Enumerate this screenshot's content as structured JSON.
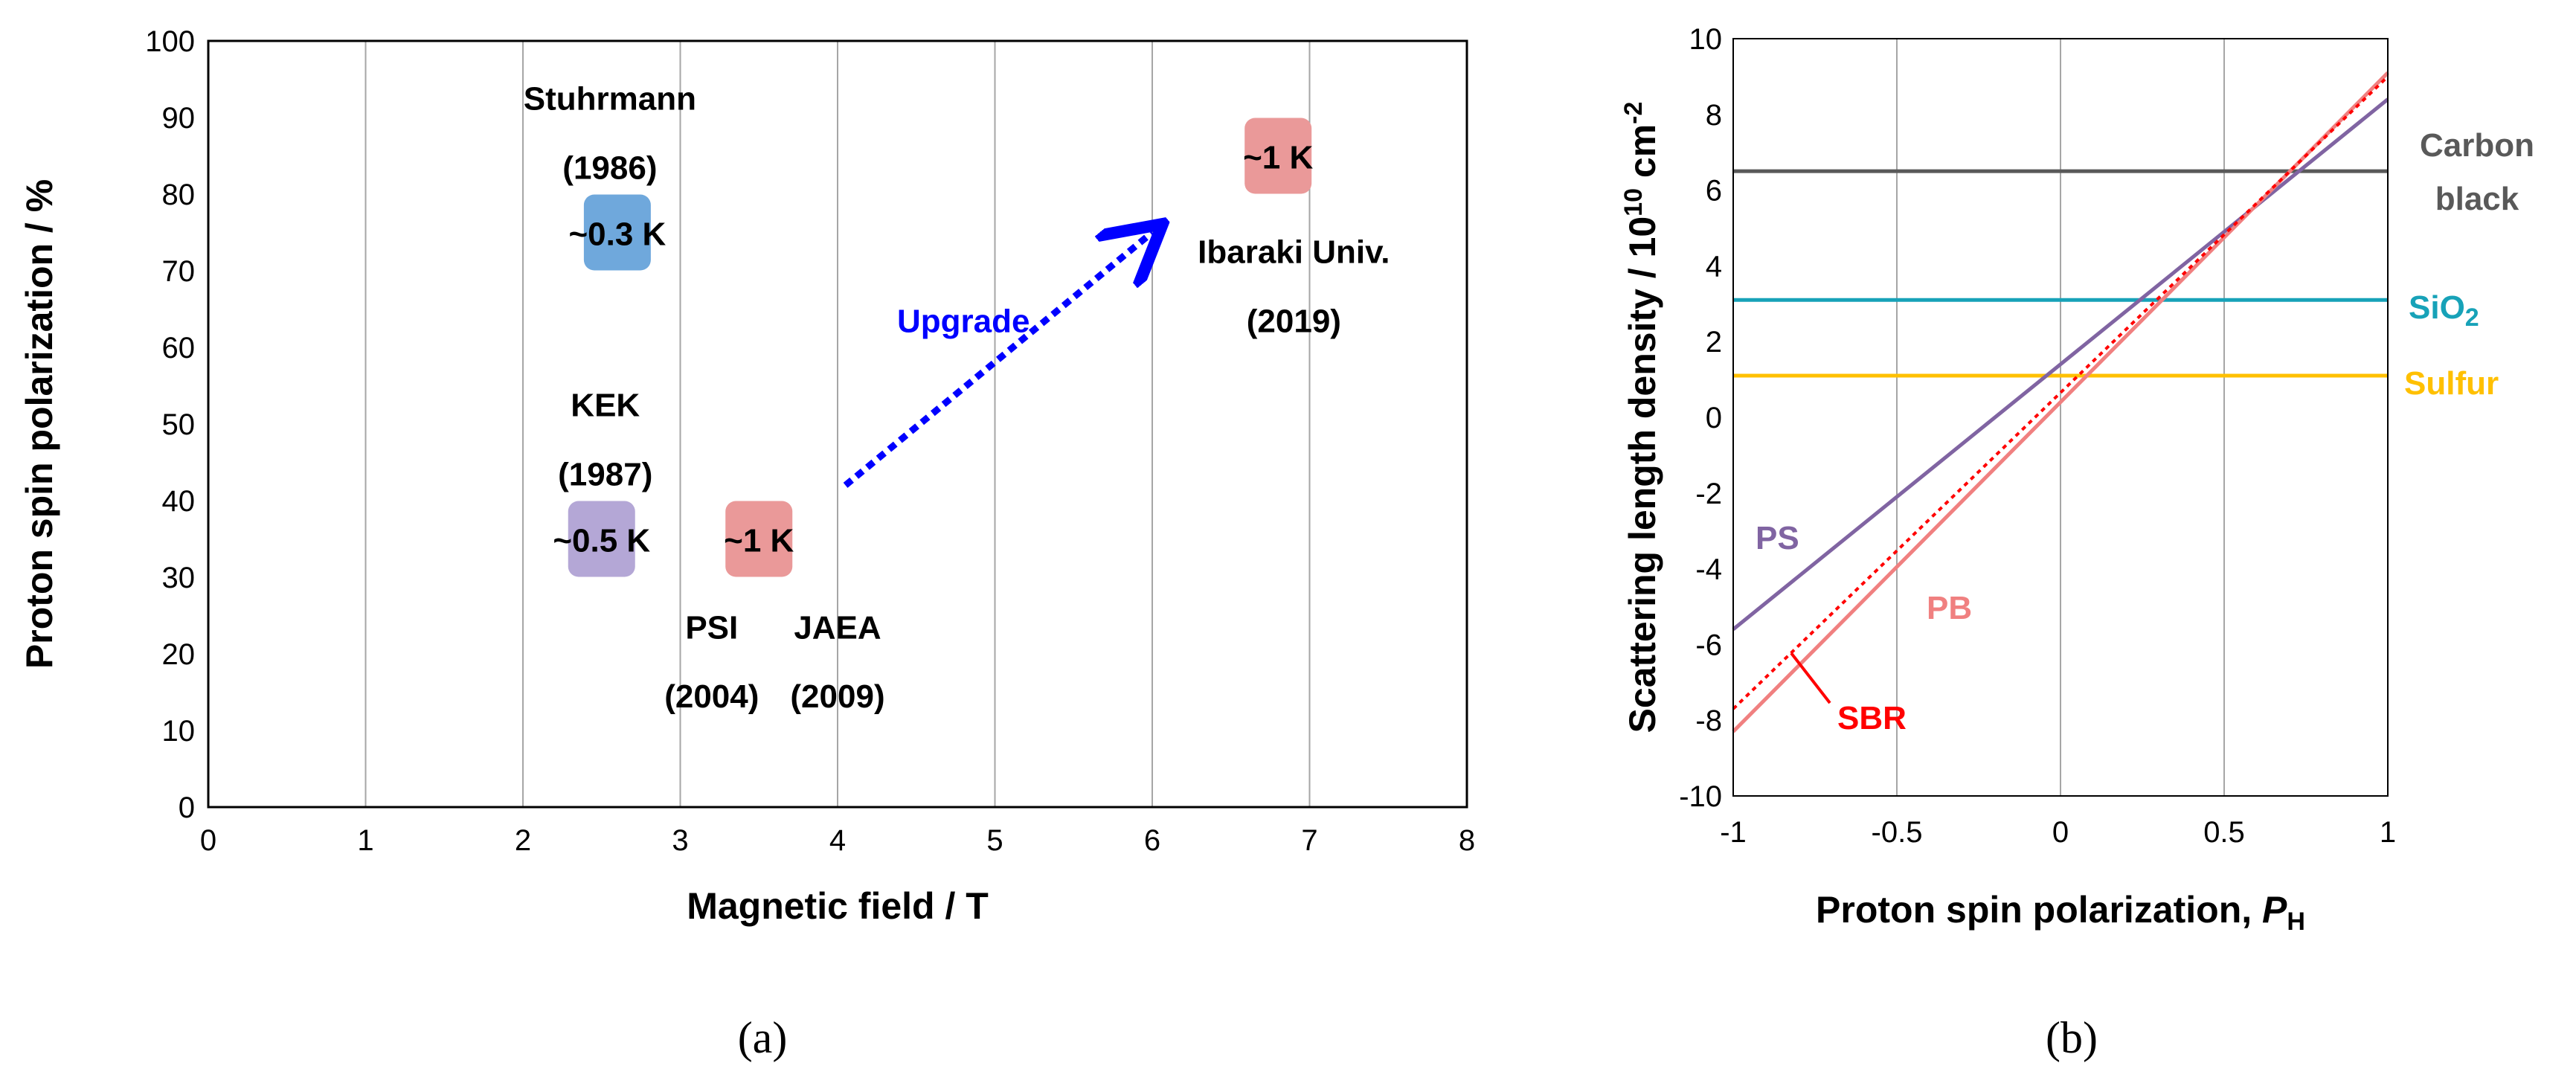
{
  "chart_data": [
    {
      "id": "a",
      "type": "scatter",
      "panel_label": "(a)",
      "xlabel": "Magnetic field / T",
      "ylabel": "Proton spin polarization / %",
      "xlim": [
        0,
        8
      ],
      "ylim": [
        0,
        100
      ],
      "xticks": [
        "0",
        "1",
        "2",
        "3",
        "4",
        "5",
        "6",
        "7",
        "8"
      ],
      "yticks": [
        "0",
        "10",
        "20",
        "30",
        "40",
        "50",
        "60",
        "70",
        "80",
        "90",
        "100"
      ],
      "points": [
        {
          "name": "Stuhrmann",
          "year": "(1986)",
          "x": 2.6,
          "y": 75,
          "label": "~0.3 K",
          "color": "#6fa8dc"
        },
        {
          "name": "KEK",
          "year": "(1987)",
          "x": 2.5,
          "y": 35,
          "label": "~0.5 K",
          "color": "#b4a7d6"
        },
        {
          "name": "PSI",
          "year": "(2004)",
          "x": 3.5,
          "y": 35,
          "label": "~1 K",
          "color": "#ea9999"
        },
        {
          "name": "JAEA",
          "year": "(2009)",
          "x": 3.5,
          "y": 35,
          "label": "",
          "color": "#ea9999"
        },
        {
          "name": "Ibaraki Univ.",
          "year": "(2019)",
          "x": 6.8,
          "y": 85,
          "label": "~1 K",
          "color": "#ea9999"
        }
      ],
      "arrow": {
        "label": "Upgrade",
        "from": [
          4.05,
          42
        ],
        "to": [
          6.0,
          75
        ],
        "color": "#0000ff"
      }
    },
    {
      "id": "b",
      "type": "line",
      "panel_label": "(b)",
      "xlabel": "Proton spin polarization, ",
      "xlabel_italic": "P",
      "xlabel_sub": "H",
      "ylabel": "Scattering length density / 10",
      "ylabel_sup": "10",
      "ylabel_unit": " cm",
      "ylabel_unit_sup": "-2",
      "xlim": [
        -1,
        1
      ],
      "ylim": [
        -10,
        10
      ],
      "xticks": [
        "-1",
        "-0.5",
        "0",
        "0.5",
        "1"
      ],
      "yticks": [
        "-10",
        "-8",
        "-6",
        "-4",
        "-2",
        "0",
        "2",
        "4",
        "6",
        "8",
        "10"
      ],
      "series": [
        {
          "name": "Carbon black",
          "line1": "Carbon",
          "line2": "black",
          "x": [
            -1,
            1
          ],
          "y": [
            6.5,
            6.5
          ],
          "color": "#595959"
        },
        {
          "name": "SiO2",
          "base": "SiO",
          "sub": "2",
          "x": [
            -1,
            1
          ],
          "y": [
            3.1,
            3.1
          ],
          "color": "#17a2b8"
        },
        {
          "name": "Sulfur",
          "x": [
            -1,
            1
          ],
          "y": [
            1.1,
            1.1
          ],
          "color": "#ffc000"
        },
        {
          "name": "PS",
          "x": [
            -1,
            1
          ],
          "y": [
            -5.6,
            8.4
          ],
          "color": "#8064a2"
        },
        {
          "name": "PB",
          "x": [
            -1,
            1
          ],
          "y": [
            -8.3,
            9.1
          ],
          "color": "#f08080"
        },
        {
          "name": "SBR",
          "x": [
            -1,
            1
          ],
          "y": [
            -7.7,
            9.0
          ],
          "color": "#ff0000",
          "dashed": true
        }
      ]
    }
  ]
}
